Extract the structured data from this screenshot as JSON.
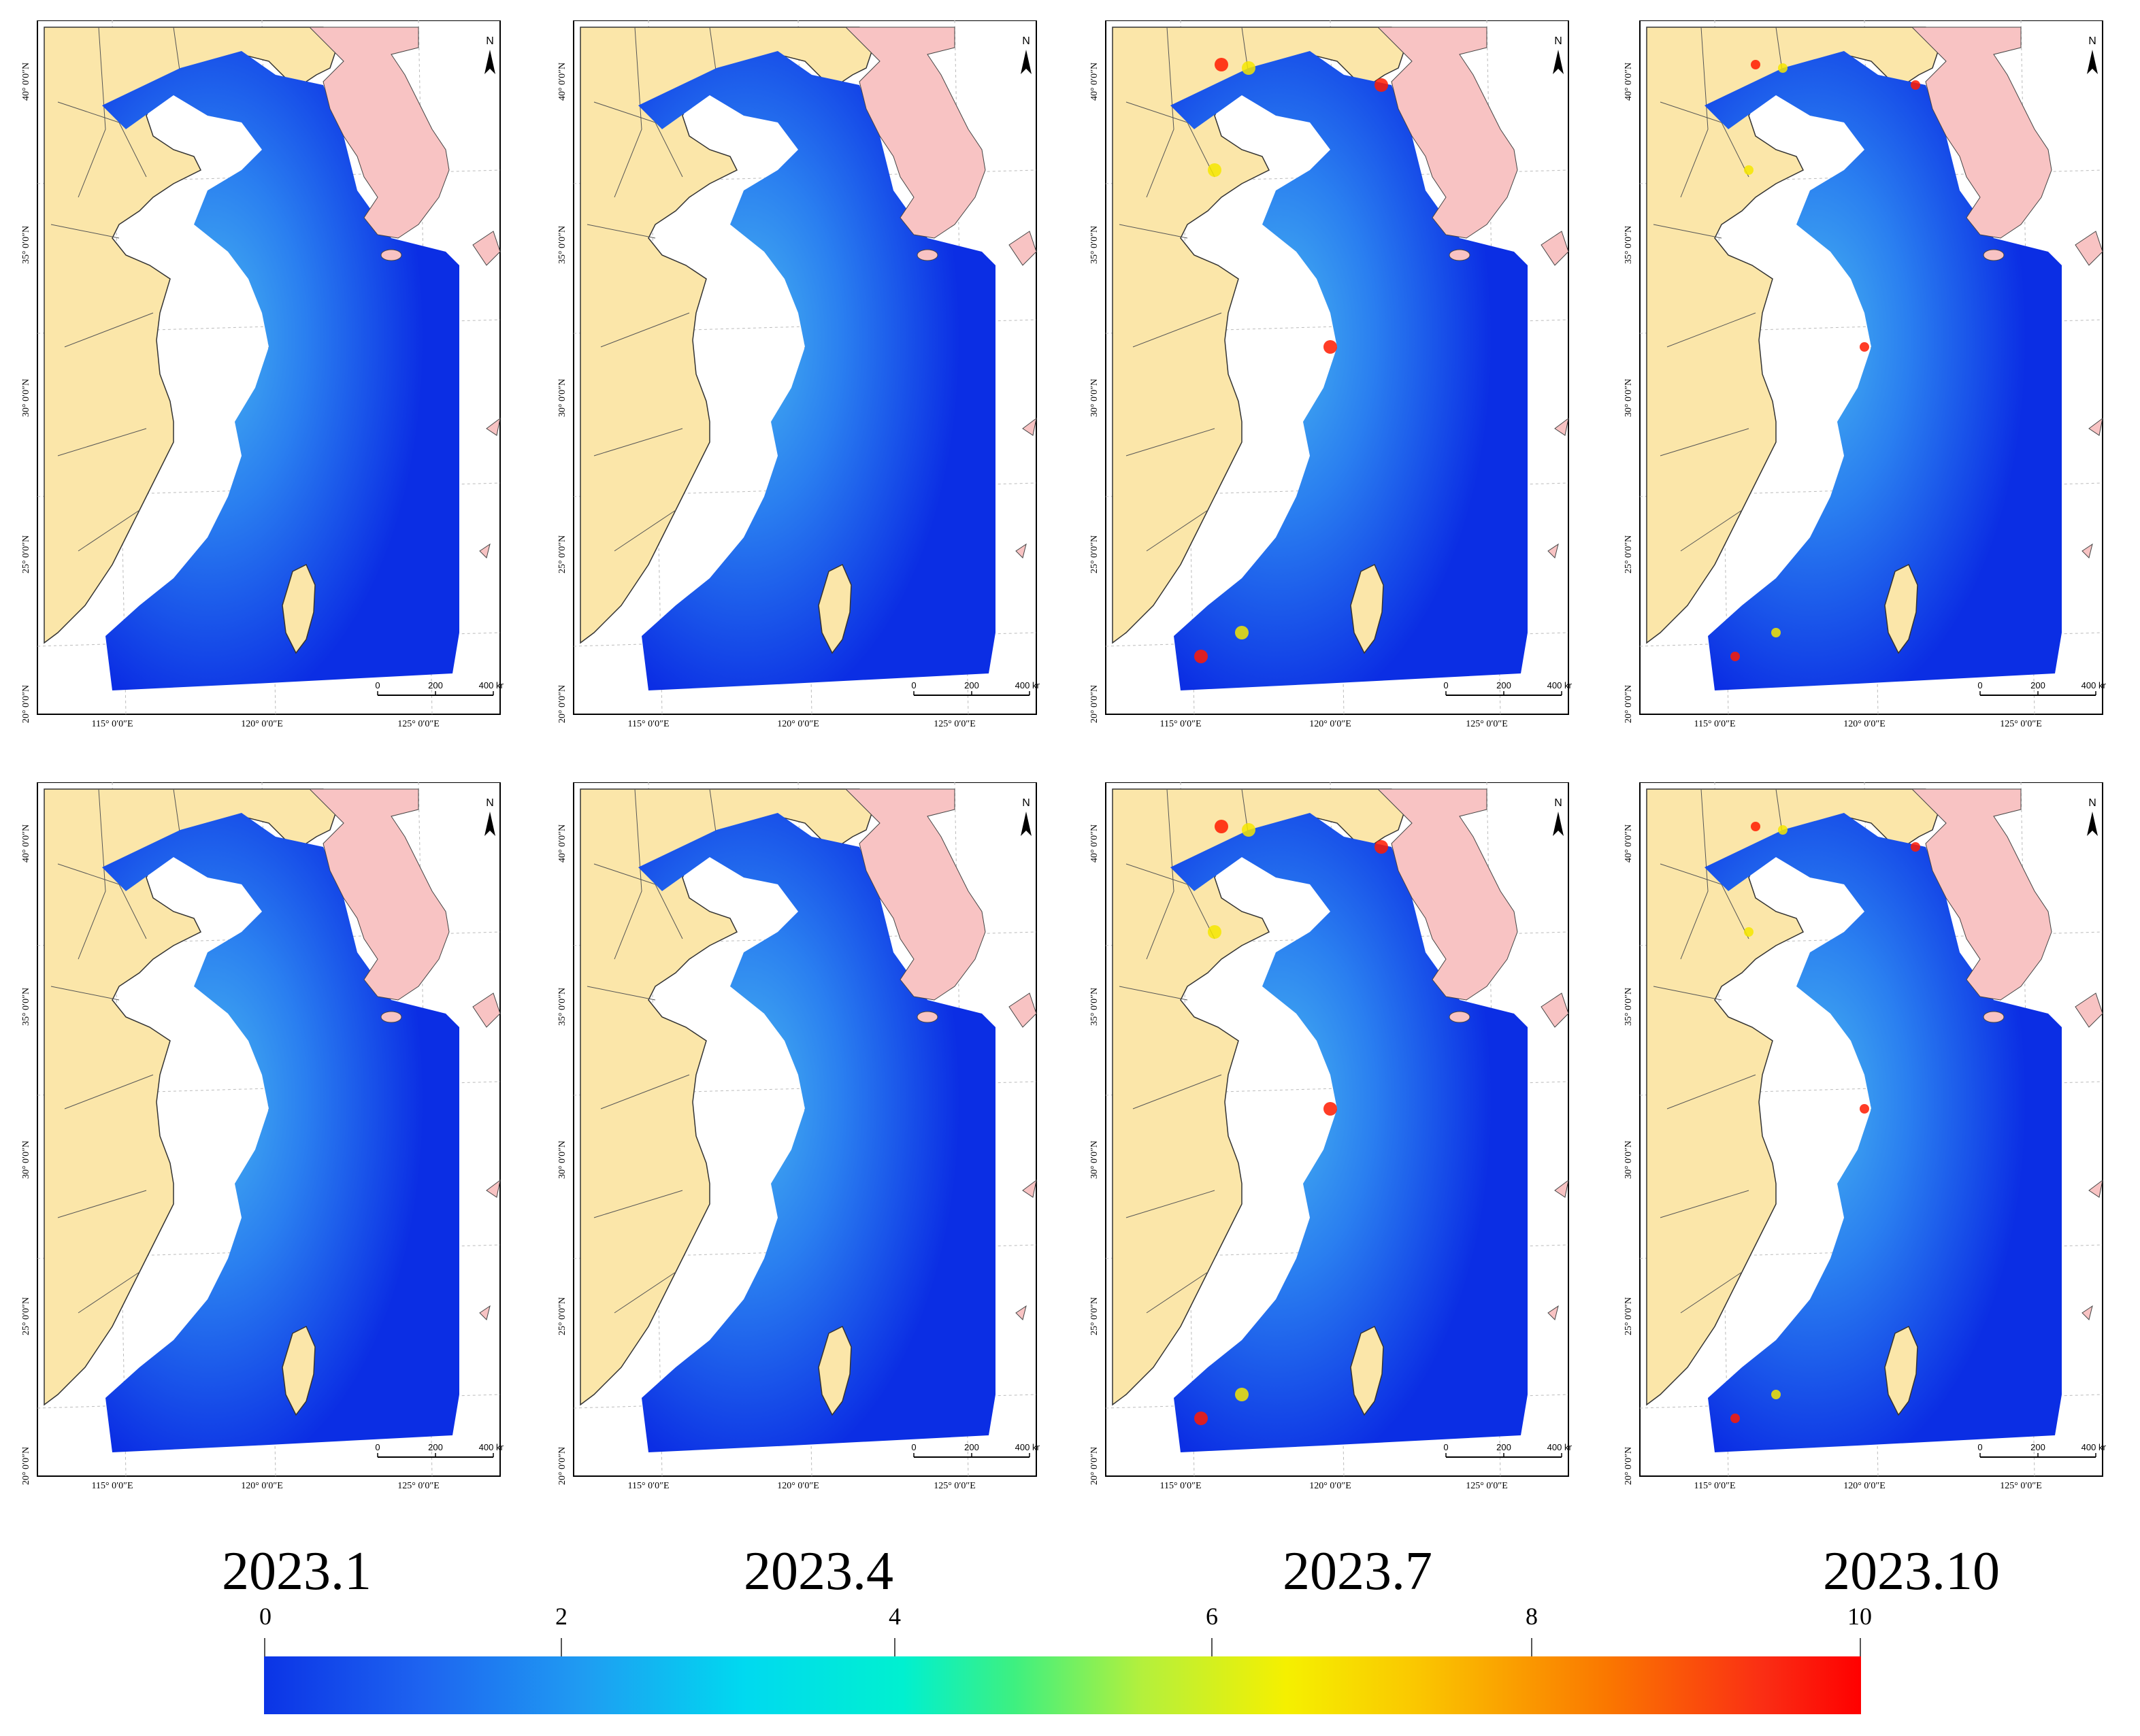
{
  "panels": [
    {
      "id": "2023-01-top",
      "row": 0,
      "col": 0
    },
    {
      "id": "2023-04-top",
      "row": 0,
      "col": 1
    },
    {
      "id": "2023-07-top",
      "row": 0,
      "col": 2
    },
    {
      "id": "2023-10-top",
      "row": 0,
      "col": 3
    },
    {
      "id": "2023-01-bottom",
      "row": 1,
      "col": 0
    },
    {
      "id": "2023-04-bottom",
      "row": 1,
      "col": 1
    },
    {
      "id": "2023-07-bottom",
      "row": 1,
      "col": 2
    },
    {
      "id": "2023-10-bottom",
      "row": 1,
      "col": 3
    }
  ],
  "month_labels": [
    "2023.1",
    "2023.4",
    "2023.7",
    "2023.10"
  ],
  "map": {
    "lat_labels": [
      "40° 0′0″N",
      "35° 0′0″N",
      "30° 0′0″N",
      "25° 0′0″N",
      "20° 0′0″N"
    ],
    "lon_labels": [
      "115° 0′0″E",
      "120° 0′0″E",
      "125° 0′0″E"
    ],
    "north_label": "N",
    "scale_labels": [
      "0",
      "200",
      "400 km"
    ]
  },
  "colorbar": {
    "ticks": [
      "0",
      "2",
      "4",
      "6",
      "8",
      "10"
    ],
    "min": 0,
    "max": 10
  },
  "colors": {
    "land": "#fbe6a9",
    "korea": "#f8c3c3",
    "sea_deep": "#0b2ee4",
    "sea_mid": "#2a7ff0",
    "sea_shelf": "#48b6f0",
    "high": "#ff1a00",
    "mid_high": "#f5e600"
  }
}
